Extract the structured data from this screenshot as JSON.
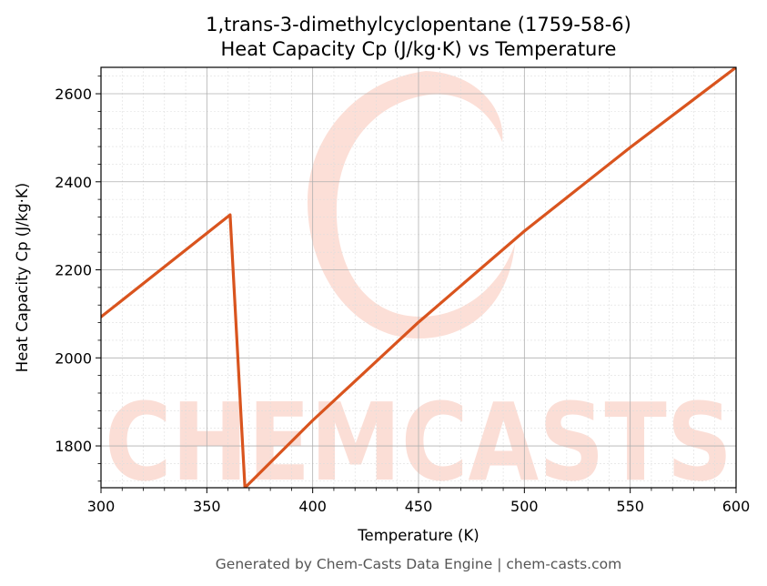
{
  "chart_data": {
    "type": "line",
    "title": [
      "1,trans-3-dimethylcyclopentane (1759-58-6)",
      "Heat Capacity Cp (J/kg·K) vs Temperature"
    ],
    "xlabel": "Temperature (K)",
    "ylabel": "Heat Capacity Cp (J/kg·K)",
    "xlim": [
      300,
      600
    ],
    "ylim": [
      1705,
      2660
    ],
    "x_ticks": [
      300,
      350,
      400,
      450,
      500,
      550,
      600
    ],
    "y_ticks": [
      1800,
      2000,
      2200,
      2400,
      2600
    ],
    "x_tick_labels": [
      "300",
      "350",
      "400",
      "450",
      "500",
      "550",
      "600"
    ],
    "y_tick_labels": [
      "1800",
      "2000",
      "2200",
      "2400",
      "2600"
    ],
    "grid": true,
    "series": [
      {
        "color": "#d9541e",
        "x": [
          300,
          361,
          368,
          400,
          450,
          500,
          550,
          600
        ],
        "y": [
          2093,
          2325,
          1705,
          1858,
          2081,
          2288,
          2478,
          2660
        ]
      }
    ],
    "watermark": "CHEMCASTS",
    "watermark_color": "#fbd9d0",
    "footer": "Generated by Chem-Casts Data Engine | chem-casts.com"
  }
}
